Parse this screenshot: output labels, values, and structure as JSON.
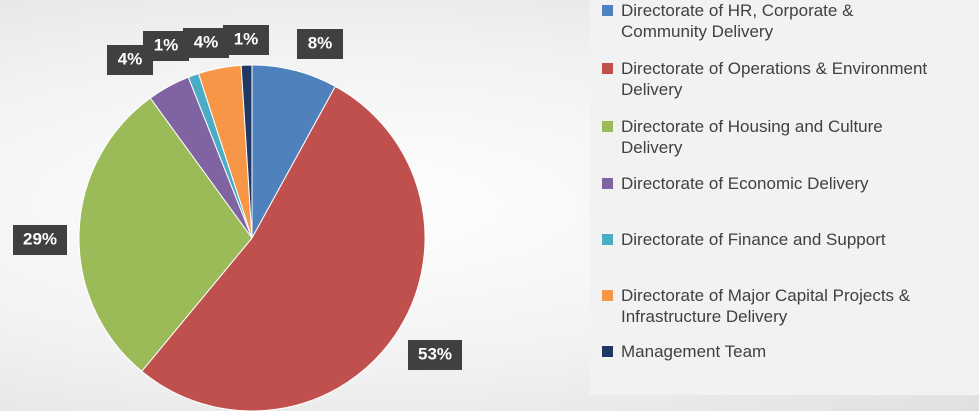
{
  "chart_data": {
    "type": "pie",
    "categories": [
      "Directorate of HR, Corporate & Community Delivery",
      "Directorate of Operations & Environment Delivery",
      "Directorate of Housing and Culture Delivery",
      "Directorate of Economic Delivery",
      "Directorate of Finance and Support",
      "Directorate of Major Capital Projects & Infrastructure Delivery",
      "Management Team"
    ],
    "values": [
      8,
      53,
      29,
      4,
      1,
      4,
      1
    ],
    "value_labels": [
      "8%",
      "53%",
      "29%",
      "4%",
      "1%",
      "4%",
      "1%"
    ],
    "colors": [
      "#4f81bd",
      "#c0504d",
      "#9bbb59",
      "#8064a2",
      "#4bacc6",
      "#f79646",
      "#1f3864"
    ],
    "legend": "right"
  }
}
